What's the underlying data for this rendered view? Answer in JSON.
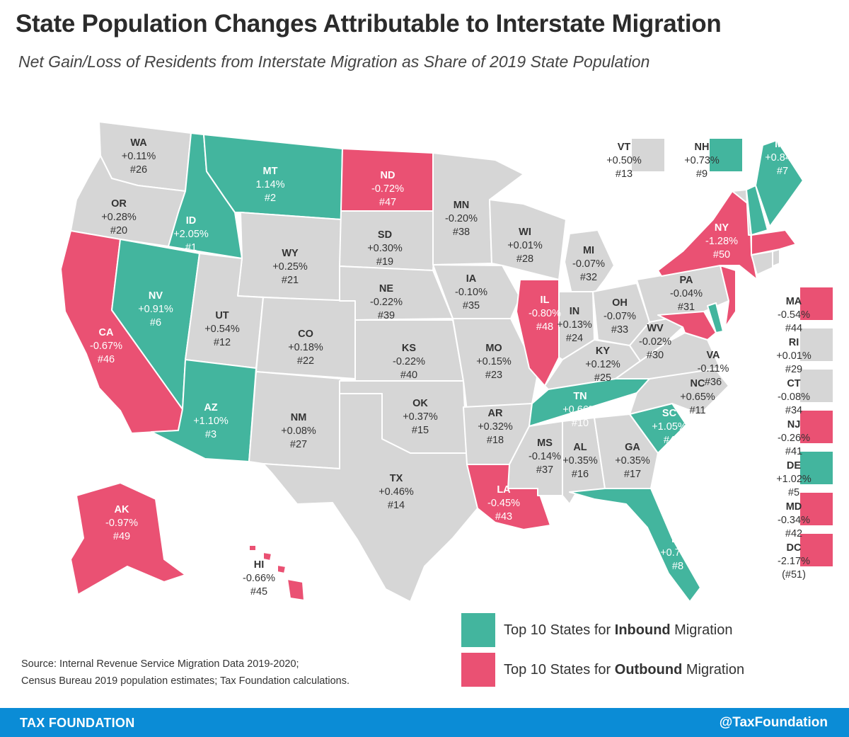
{
  "title": "State Population Changes Attributable to Interstate Migration",
  "subtitle": "Net Gain/Loss of Residents from Interstate Migration as Share of 2019 State Population",
  "colors": {
    "inbound": "#43b59e",
    "outbound": "#ea5173",
    "neutral": "#d6d6d6",
    "footer": "#0b8cd6"
  },
  "states": [
    {
      "code": "WA",
      "value": "+0.11%",
      "rank": "#26",
      "group": "neutral"
    },
    {
      "code": "OR",
      "value": "+0.28%",
      "rank": "#20",
      "group": "neutral"
    },
    {
      "code": "CA",
      "value": "-0.67%",
      "rank": "#46",
      "group": "outbound"
    },
    {
      "code": "ID",
      "value": "+2.05%",
      "rank": "#1",
      "group": "inbound"
    },
    {
      "code": "NV",
      "value": "+0.91%",
      "rank": "#6",
      "group": "inbound"
    },
    {
      "code": "MT",
      "value": "1.14%",
      "rank": "#2",
      "group": "inbound"
    },
    {
      "code": "WY",
      "value": "+0.25%",
      "rank": "#21",
      "group": "neutral"
    },
    {
      "code": "UT",
      "value": "+0.54%",
      "rank": "#12",
      "group": "neutral"
    },
    {
      "code": "AZ",
      "value": "+1.10%",
      "rank": "#3",
      "group": "inbound"
    },
    {
      "code": "CO",
      "value": "+0.18%",
      "rank": "#22",
      "group": "neutral"
    },
    {
      "code": "NM",
      "value": "+0.08%",
      "rank": "#27",
      "group": "neutral"
    },
    {
      "code": "ND",
      "value": "-0.72%",
      "rank": "#47",
      "group": "outbound"
    },
    {
      "code": "SD",
      "value": "+0.30%",
      "rank": "#19",
      "group": "neutral"
    },
    {
      "code": "NE",
      "value": "-0.22%",
      "rank": "#39",
      "group": "neutral"
    },
    {
      "code": "KS",
      "value": "-0.22%",
      "rank": "#40",
      "group": "neutral"
    },
    {
      "code": "OK",
      "value": "+0.37%",
      "rank": "#15",
      "group": "neutral"
    },
    {
      "code": "TX",
      "value": "+0.46%",
      "rank": "#14",
      "group": "neutral"
    },
    {
      "code": "MN",
      "value": "-0.20%",
      "rank": "#38",
      "group": "neutral"
    },
    {
      "code": "IA",
      "value": "-0.10%",
      "rank": "#35",
      "group": "neutral"
    },
    {
      "code": "MO",
      "value": "+0.15%",
      "rank": "#23",
      "group": "neutral"
    },
    {
      "code": "AR",
      "value": "+0.32%",
      "rank": "#18",
      "group": "neutral"
    },
    {
      "code": "LA",
      "value": "-0.45%",
      "rank": "#43",
      "group": "outbound"
    },
    {
      "code": "WI",
      "value": "+0.01%",
      "rank": "#28",
      "group": "neutral"
    },
    {
      "code": "IL",
      "value": "-0.80%",
      "rank": "#48",
      "group": "outbound"
    },
    {
      "code": "MI",
      "value": "-0.07%",
      "rank": "#32",
      "group": "neutral"
    },
    {
      "code": "IN",
      "value": "+0.13%",
      "rank": "#24",
      "group": "neutral"
    },
    {
      "code": "OH",
      "value": "-0.07%",
      "rank": "#33",
      "group": "neutral"
    },
    {
      "code": "KY",
      "value": "+0.12%",
      "rank": "#25",
      "group": "neutral"
    },
    {
      "code": "TN",
      "value": "+0.66%",
      "rank": "#10",
      "group": "inbound"
    },
    {
      "code": "MS",
      "value": "-0.14%",
      "rank": "#37",
      "group": "neutral"
    },
    {
      "code": "AL",
      "value": "+0.35%",
      "rank": "#16",
      "group": "neutral"
    },
    {
      "code": "GA",
      "value": "+0.35%",
      "rank": "#17",
      "group": "neutral"
    },
    {
      "code": "FL",
      "value": "+0.78%",
      "rank": "#8",
      "group": "inbound"
    },
    {
      "code": "SC",
      "value": "+1.05%",
      "rank": "#4",
      "group": "inbound"
    },
    {
      "code": "NC",
      "value": "+0.65%",
      "rank": "#11",
      "group": "neutral"
    },
    {
      "code": "VA",
      "value": "-0.11%",
      "rank": "#36",
      "group": "neutral"
    },
    {
      "code": "WV",
      "value": "-0.02%",
      "rank": "#30",
      "group": "neutral"
    },
    {
      "code": "PA",
      "value": "-0.04%",
      "rank": "#31",
      "group": "neutral"
    },
    {
      "code": "NY",
      "value": "-1.28%",
      "rank": "#50",
      "group": "outbound"
    },
    {
      "code": "ME",
      "value": "+0.84%",
      "rank": "#7",
      "group": "inbound"
    },
    {
      "code": "AK",
      "value": "-0.97%",
      "rank": "#49",
      "group": "outbound"
    },
    {
      "code": "HI",
      "value": "-0.66%",
      "rank": "#45",
      "group": "outbound"
    },
    {
      "code": "VT",
      "value": "+0.50%",
      "rank": "#13",
      "group": "neutral"
    },
    {
      "code": "NH",
      "value": "+0.73%",
      "rank": "#9",
      "group": "inbound"
    },
    {
      "code": "MA",
      "value": "-0.54%",
      "rank": "#44",
      "group": "outbound"
    },
    {
      "code": "RI",
      "value": "+0.01%",
      "rank": "#29",
      "group": "neutral"
    },
    {
      "code": "CT",
      "value": "-0.08%",
      "rank": "#34",
      "group": "neutral"
    },
    {
      "code": "NJ",
      "value": "-0.26%",
      "rank": "#41",
      "group": "outbound"
    },
    {
      "code": "DE",
      "value": "+1.02%",
      "rank": "#5",
      "group": "inbound"
    },
    {
      "code": "MD",
      "value": "-0.34%",
      "rank": "#42",
      "group": "outbound"
    },
    {
      "code": "DC",
      "value": "-2.17%",
      "rank": "(#51)",
      "group": "outbound"
    }
  ],
  "legend": {
    "inbound": {
      "prefix": "Top 10 States for ",
      "bold": "Inbound",
      "suffix": " Migration"
    },
    "outbound": {
      "prefix": "Top 10 States for ",
      "bold": "Outbound",
      "suffix": " Migration"
    }
  },
  "source": {
    "line1": "Source: Internal Revenue Service Migration Data 2019-2020;",
    "line2": "Census Bureau 2019 population estimates; Tax Foundation calculations."
  },
  "footer": {
    "left": "TAX FOUNDATION",
    "right": "@TaxFoundation"
  }
}
